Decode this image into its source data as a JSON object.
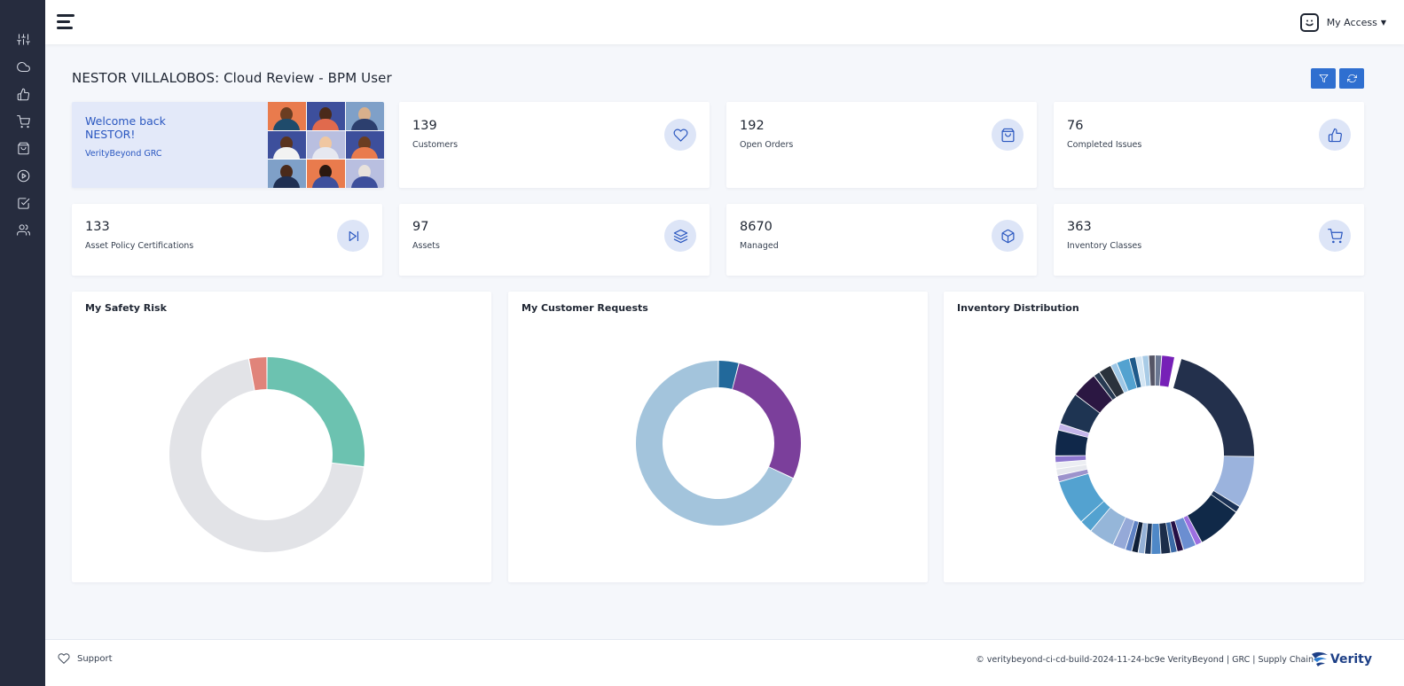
{
  "sidebar": {
    "items": [
      {
        "icon": "sliders-icon"
      },
      {
        "icon": "cloud-icon"
      },
      {
        "icon": "thumbs-up-icon"
      },
      {
        "icon": "cart-icon"
      },
      {
        "icon": "bag-icon"
      },
      {
        "icon": "play-circle-icon"
      },
      {
        "icon": "checkbox-icon"
      },
      {
        "icon": "users-icon"
      }
    ]
  },
  "header": {
    "menu_icon": "hamburger-icon",
    "access_label": "My Access",
    "access_icon": "smiley-icon"
  },
  "page": {
    "title": "NESTOR VILLALOBOS: Cloud Review - BPM User",
    "filter_icon": "filter-icon",
    "refresh_icon": "refresh-icon"
  },
  "welcome": {
    "line1": "Welcome back",
    "line2": "NESTOR!",
    "brand": "VerityBeyond GRC"
  },
  "stats": [
    {
      "value": "139",
      "label": "Customers",
      "icon": "heart-icon"
    },
    {
      "value": "192",
      "label": "Open Orders",
      "icon": "bag-icon"
    },
    {
      "value": "76",
      "label": "Completed Issues",
      "icon": "thumbs-up-icon"
    },
    {
      "value": "133",
      "label": "Asset Policy Certifications",
      "icon": "skip-forward-icon"
    },
    {
      "value": "97",
      "label": "Assets",
      "icon": "layers-icon"
    },
    {
      "value": "8670",
      "label": "Managed",
      "icon": "box-icon"
    },
    {
      "value": "363",
      "label": "Inventory Classes",
      "icon": "cart-icon"
    }
  ],
  "chart_data": [
    {
      "type": "pie",
      "title": "My Safety Risk",
      "donut": true,
      "values": [
        27,
        70,
        3
      ],
      "colors": [
        "#6cc2b0",
        "#e2e3e7",
        "#e0847a"
      ]
    },
    {
      "type": "pie",
      "title": "My Customer Requests",
      "donut": true,
      "values": [
        4,
        28,
        68
      ],
      "colors": [
        "#22699b",
        "#7b3f9b",
        "#a3c4dc"
      ]
    },
    {
      "type": "pie",
      "title": "Inventory Distribution",
      "donut": true,
      "values": [
        2,
        1,
        20,
        8,
        1,
        7,
        1,
        2,
        1,
        1,
        1.5,
        1.5,
        1,
        1,
        1,
        1,
        2,
        4,
        2,
        7,
        1,
        1,
        1,
        1,
        4,
        1,
        5,
        4,
        1,
        2,
        1,
        2,
        1,
        1,
        1,
        1,
        1
      ],
      "colors": [
        "#7620b7",
        "#ffffff",
        "#23304c",
        "#9bb3dd",
        "#1b3256",
        "#102948",
        "#9c6fe0",
        "#6b8ed1",
        "#250f45",
        "#3b6aa7",
        "#1c2d4a",
        "#4f88c7",
        "#1e3659",
        "#95b1d6",
        "#0f1f38",
        "#5f82c4",
        "#95a9d8",
        "#95b6d9",
        "#53a2d0",
        "#53a2d0",
        "#9c93cc",
        "#e6e8ee",
        "#eceef3",
        "#8d77d0",
        "#10284a",
        "#c4b6ea",
        "#1e3452",
        "#2b1742",
        "#273a52",
        "#2a323c",
        "#9ec7e6",
        "#53a2d0",
        "#1f5a8a",
        "#d4e6f4",
        "#a8cbe6",
        "#556",
        "#6b7893"
      ]
    }
  ],
  "footer": {
    "support_label": "Support",
    "copyright": "© veritybeyond-ci-cd-build-2024-11-24-bc9e VerityBeyond | GRC | Supply Chain",
    "logo_text": "Verity"
  }
}
